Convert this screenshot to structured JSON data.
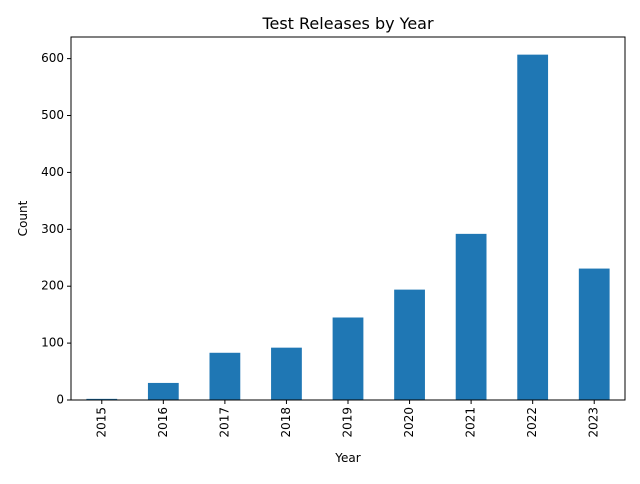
{
  "chart_data": {
    "type": "bar",
    "title": "Test Releases by Year",
    "xlabel": "Year",
    "ylabel": "Count",
    "categories": [
      "2015",
      "2016",
      "2017",
      "2018",
      "2019",
      "2020",
      "2021",
      "2022",
      "2023"
    ],
    "values": [
      2,
      30,
      83,
      92,
      145,
      194,
      292,
      607,
      231
    ],
    "ylim": [
      0,
      638
    ],
    "yticks": [
      0,
      100,
      200,
      300,
      400,
      500,
      600
    ],
    "bar_color": "#1f77b4",
    "grid": false,
    "legend": "none"
  }
}
